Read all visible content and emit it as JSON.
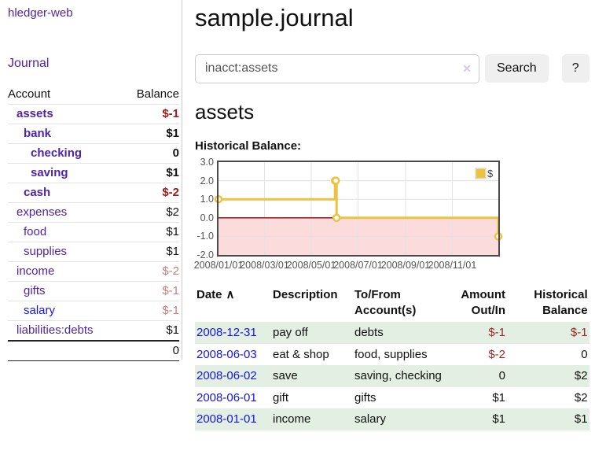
{
  "colors": {
    "link_purple": "#4e24a8",
    "link_blue": "#1515e0",
    "negative_strong": "#9e1a1a",
    "negative_soft": "#c38080",
    "negative_table": "#9d2626",
    "row_stripe_green": "#e2efe2",
    "series_gold": "#EDC240",
    "button_gray": "#efefef"
  },
  "sidebar": {
    "app_link": "hledger-web",
    "journal_link": "Journal",
    "accounts": {
      "col_account": "Account",
      "col_balance": "Balance",
      "rows": [
        {
          "name": "assets",
          "balance": "$-1"
        },
        {
          "name": "bank",
          "balance": "$1"
        },
        {
          "name": "checking",
          "balance": "0"
        },
        {
          "name": "saving",
          "balance": "$1"
        },
        {
          "name": "cash",
          "balance": "$-2"
        },
        {
          "name": "expenses",
          "balance": "$2"
        },
        {
          "name": "food",
          "balance": "$1"
        },
        {
          "name": "supplies",
          "balance": "$1"
        },
        {
          "name": "income",
          "balance": "$-2"
        },
        {
          "name": "gifts",
          "balance": "$-1"
        },
        {
          "name": "salary",
          "balance": "$-1"
        },
        {
          "name": "liabilities:debts",
          "balance": "$1"
        }
      ],
      "total": "0"
    }
  },
  "main": {
    "page_title": "sample.journal",
    "search": {
      "value": "inacct:assets",
      "clear_icon": "✕",
      "button_label": "Search",
      "help_label": "?"
    },
    "section_title": "assets",
    "chart_label": "Historical Balance:"
  },
  "chart_data": {
    "type": "line",
    "title": "Historical Balance:",
    "step": true,
    "series": [
      {
        "name": "$",
        "color": "#EDC240",
        "points": [
          [
            "2008-01-01",
            1
          ],
          [
            "2008-06-01",
            2
          ],
          [
            "2008-06-02",
            2
          ],
          [
            "2008-06-03",
            0
          ],
          [
            "2008-12-31",
            -1
          ]
        ]
      }
    ],
    "x_range": [
      "2008-01-01",
      "2008-12-31"
    ],
    "ylim": [
      -2,
      3
    ],
    "yticks": [
      "3.0",
      "2.0",
      "1.0",
      "0.0",
      "-1.0",
      "-2.0"
    ],
    "xticks": [
      "2008/01/01",
      "2008/03/01",
      "2008/05/01",
      "2008/07/01",
      "2008/09/01",
      "2008/11/01"
    ],
    "legend": {
      "label": "$",
      "position": "top-right"
    },
    "grid": true,
    "negative_region_color": "#fbdbdb",
    "zero_line_color": "#8b0000"
  },
  "register": {
    "headers": {
      "date": "Date",
      "sort_indicator": "∧",
      "description": "Description",
      "accounts": "To/From Account(s)",
      "amount": "Amount Out/In",
      "balance": "Historical Balance"
    },
    "rows": [
      {
        "date": "2008-12-31",
        "description": "pay off",
        "accounts": "debts",
        "amount": "$-1",
        "balance": "$-1"
      },
      {
        "date": "2008-06-03",
        "description": "eat & shop",
        "accounts": "food, supplies",
        "amount": "$-2",
        "balance": "0"
      },
      {
        "date": "2008-06-02",
        "description": "save",
        "accounts": "saving, checking",
        "amount": "0",
        "balance": "$2"
      },
      {
        "date": "2008-06-01",
        "description": "gift",
        "accounts": "gifts",
        "amount": "$1",
        "balance": "$2"
      },
      {
        "date": "2008-01-01",
        "description": "income",
        "accounts": "salary",
        "amount": "$1",
        "balance": "$1"
      }
    ]
  }
}
